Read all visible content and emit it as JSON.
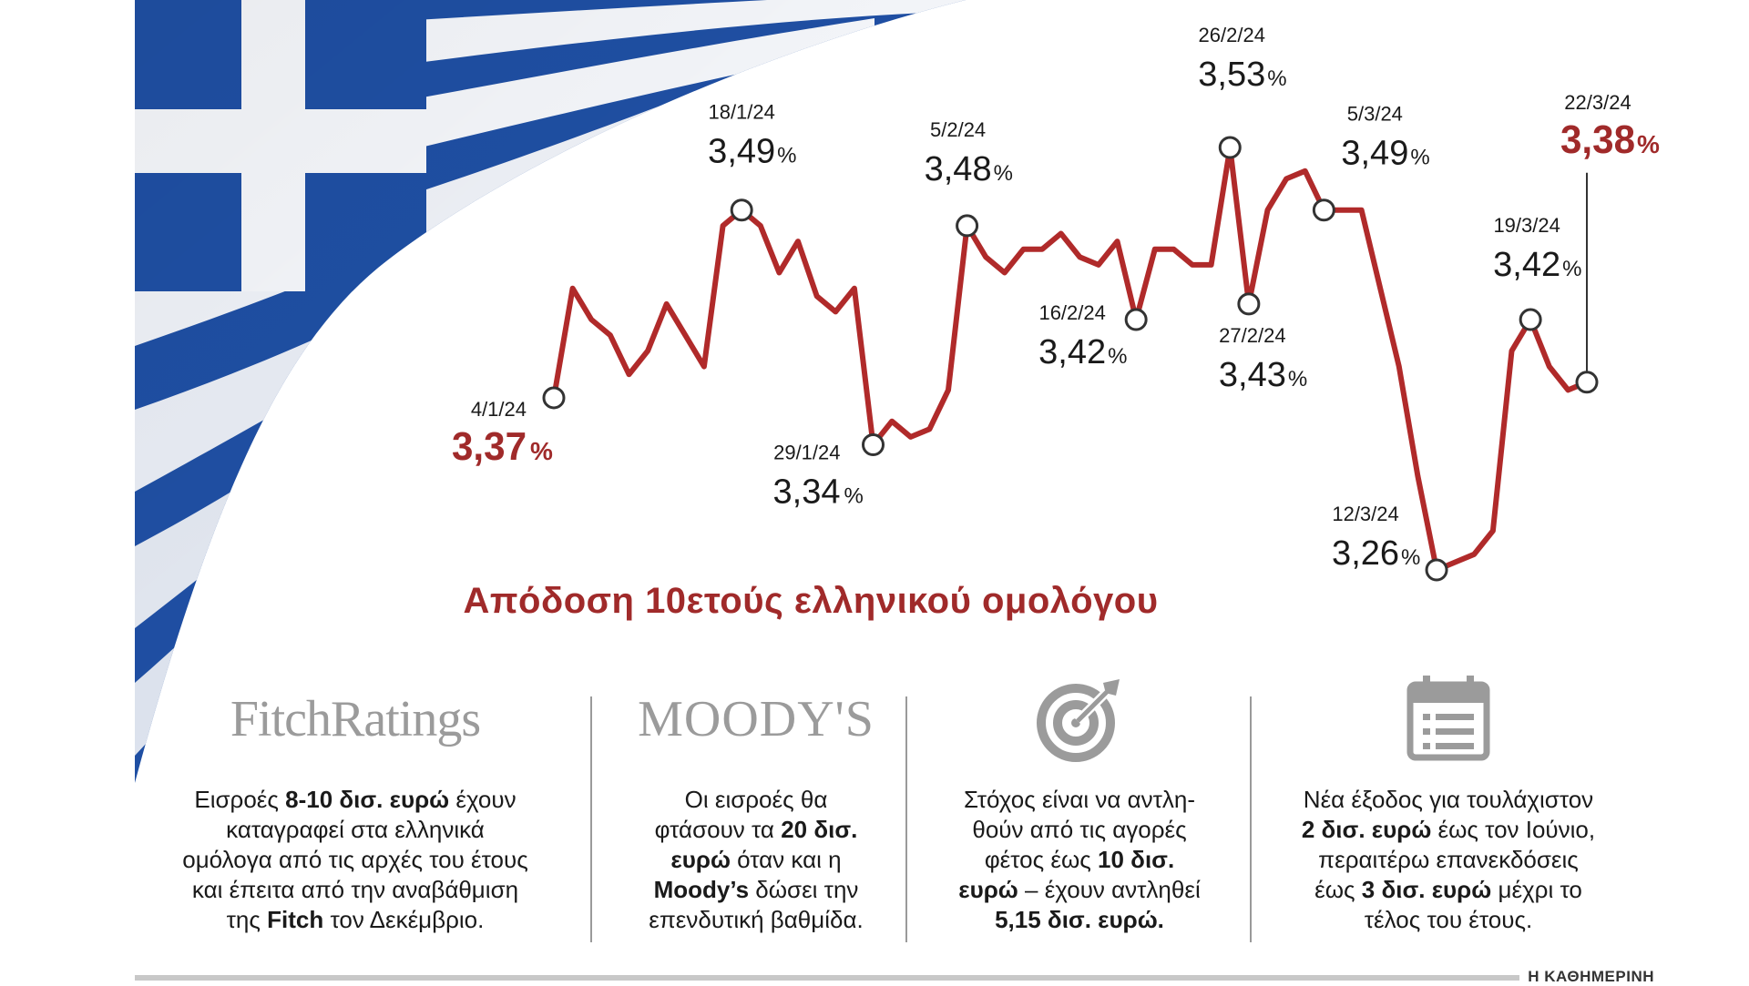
{
  "chart_data": {
    "type": "line",
    "title": "Απόδοση 10ετούς ελληνικού ομολόγου",
    "unit": "%",
    "values": [
      3.37,
      3.44,
      3.42,
      3.41,
      3.385,
      3.4,
      3.43,
      3.41,
      3.39,
      3.48,
      3.49,
      3.48,
      3.45,
      3.47,
      3.435,
      3.425,
      3.44,
      3.34,
      3.355,
      3.345,
      3.35,
      3.375,
      3.48,
      3.46,
      3.45,
      3.465,
      3.465,
      3.475,
      3.46,
      3.455,
      3.47,
      3.42,
      3.465,
      3.465,
      3.455,
      3.455,
      3.53,
      3.43,
      3.49,
      3.51,
      3.515,
      3.49,
      3.49,
      3.49,
      3.44,
      3.39,
      3.32,
      3.26,
      3.265,
      3.27,
      3.285,
      3.4,
      3.42,
      3.39,
      3.375,
      3.38
    ],
    "annotations": [
      {
        "label": "4/1/24",
        "value_text": "3,37",
        "index": 0,
        "highlight": true
      },
      {
        "label": "18/1/24",
        "value_text": "3,49",
        "index": 10,
        "highlight": false
      },
      {
        "label": "29/1/24",
        "value_text": "3,34",
        "index": 17,
        "highlight": false
      },
      {
        "label": "5/2/24",
        "value_text": "3,48",
        "index": 22,
        "highlight": false
      },
      {
        "label": "16/2/24",
        "value_text": "3,42",
        "index": 31,
        "highlight": false
      },
      {
        "label": "26/2/24",
        "value_text": "3,53",
        "index": 36,
        "highlight": false
      },
      {
        "label": "27/2/24",
        "value_text": "3,43",
        "index": 37,
        "highlight": false
      },
      {
        "label": "5/3/24",
        "value_text": "3,49",
        "index": 41,
        "highlight": false
      },
      {
        "label": "12/3/24",
        "value_text": "3,26",
        "index": 47,
        "highlight": false
      },
      {
        "label": "19/3/24",
        "value_text": "3,42",
        "index": 52,
        "highlight": false
      },
      {
        "label": "22/3/24",
        "value_text": "3,38",
        "index": 55,
        "highlight": true
      }
    ],
    "colors": {
      "line": "#b02a2a",
      "highlight": "#a02a2a",
      "text": "#1a1a1a"
    }
  },
  "info": {
    "fitch": {
      "logo": "FitchRatings",
      "lines": [
        [
          {
            "t": "Εισροές "
          },
          {
            "t": "8-10 δισ. ευρώ",
            "b": true
          },
          {
            "t": " έχουν"
          }
        ],
        [
          {
            "t": "καταγραφεί στα ελληνικά"
          }
        ],
        [
          {
            "t": "ομόλογα από τις αρχές του έτους"
          }
        ],
        [
          {
            "t": "και έπειτα από την αναβάθμιση"
          }
        ],
        [
          {
            "t": "της "
          },
          {
            "t": "Fitch",
            "b": true
          },
          {
            "t": " τον Δεκέμβριο."
          }
        ]
      ]
    },
    "moodys": {
      "logo": "MOODY'S",
      "lines": [
        [
          {
            "t": "Οι εισροές θα"
          }
        ],
        [
          {
            "t": "φτάσουν τα "
          },
          {
            "t": "20 δισ.",
            "b": true
          }
        ],
        [
          {
            "t": "ευρώ",
            "b": true
          },
          {
            "t": " όταν και η"
          }
        ],
        [
          {
            "t": "Moody’s",
            "b": true
          },
          {
            "t": " δώσει την"
          }
        ],
        [
          {
            "t": "επενδυτική βαθμίδα."
          }
        ]
      ]
    },
    "target": {
      "icon": "target-icon",
      "lines": [
        [
          {
            "t": "Στόχος είναι να αντλη-"
          }
        ],
        [
          {
            "t": "θούν από τις αγορές"
          }
        ],
        [
          {
            "t": "φέτος έως "
          },
          {
            "t": "10 δισ.",
            "b": true
          }
        ],
        [
          {
            "t": "ευρώ",
            "b": true
          },
          {
            "t": " – έχουν αντληθεί"
          }
        ],
        [
          {
            "t": "5,15 δισ. ευρώ.",
            "b": true
          }
        ]
      ]
    },
    "calendar": {
      "icon": "calendar-icon",
      "lines": [
        [
          {
            "t": "Νέα έξοδος για τουλάχιστον"
          }
        ],
        [
          {
            "t": "2 δισ. ευρώ",
            "b": true
          },
          {
            "t": " έως τον Ιούνιο,"
          }
        ],
        [
          {
            "t": "περαιτέρω επανεκδόσεις"
          }
        ],
        [
          {
            "t": "έως "
          },
          {
            "t": "3 δισ. ευρώ",
            "b": true
          },
          {
            "t": " μέχρι το"
          }
        ],
        [
          {
            "t": "τέλος του έτους."
          }
        ]
      ]
    }
  },
  "footer": "Η ΚΑΘΗΜΕΡΙΝΗ"
}
